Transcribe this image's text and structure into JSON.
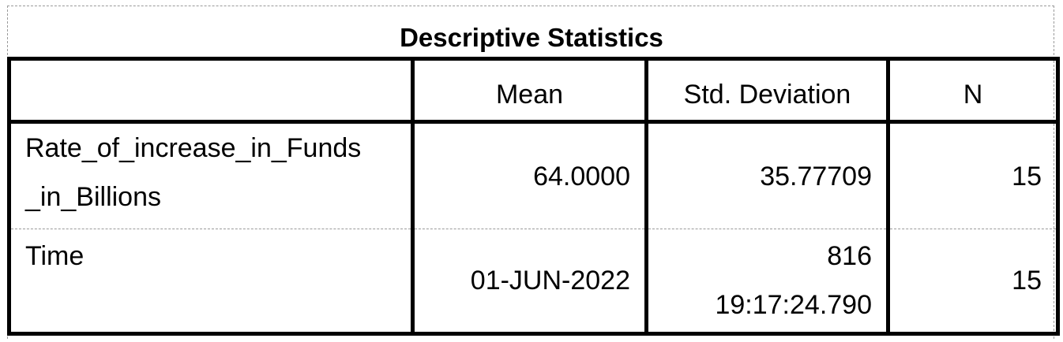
{
  "table": {
    "title": "Descriptive Statistics",
    "columns": [
      "",
      "Mean",
      "Std. Deviation",
      "N"
    ],
    "rows": [
      {
        "label_line1": "Rate_of_increase_in_Funds",
        "label_line2": "_in_Billions",
        "mean": "64.0000",
        "std_dev": "35.77709",
        "n": "15"
      },
      {
        "label_line1": "Time",
        "mean": "01-JUN-2022",
        "std_dev_line1": "816",
        "std_dev_line2": "19:17:24.790",
        "n": "15"
      }
    ]
  }
}
